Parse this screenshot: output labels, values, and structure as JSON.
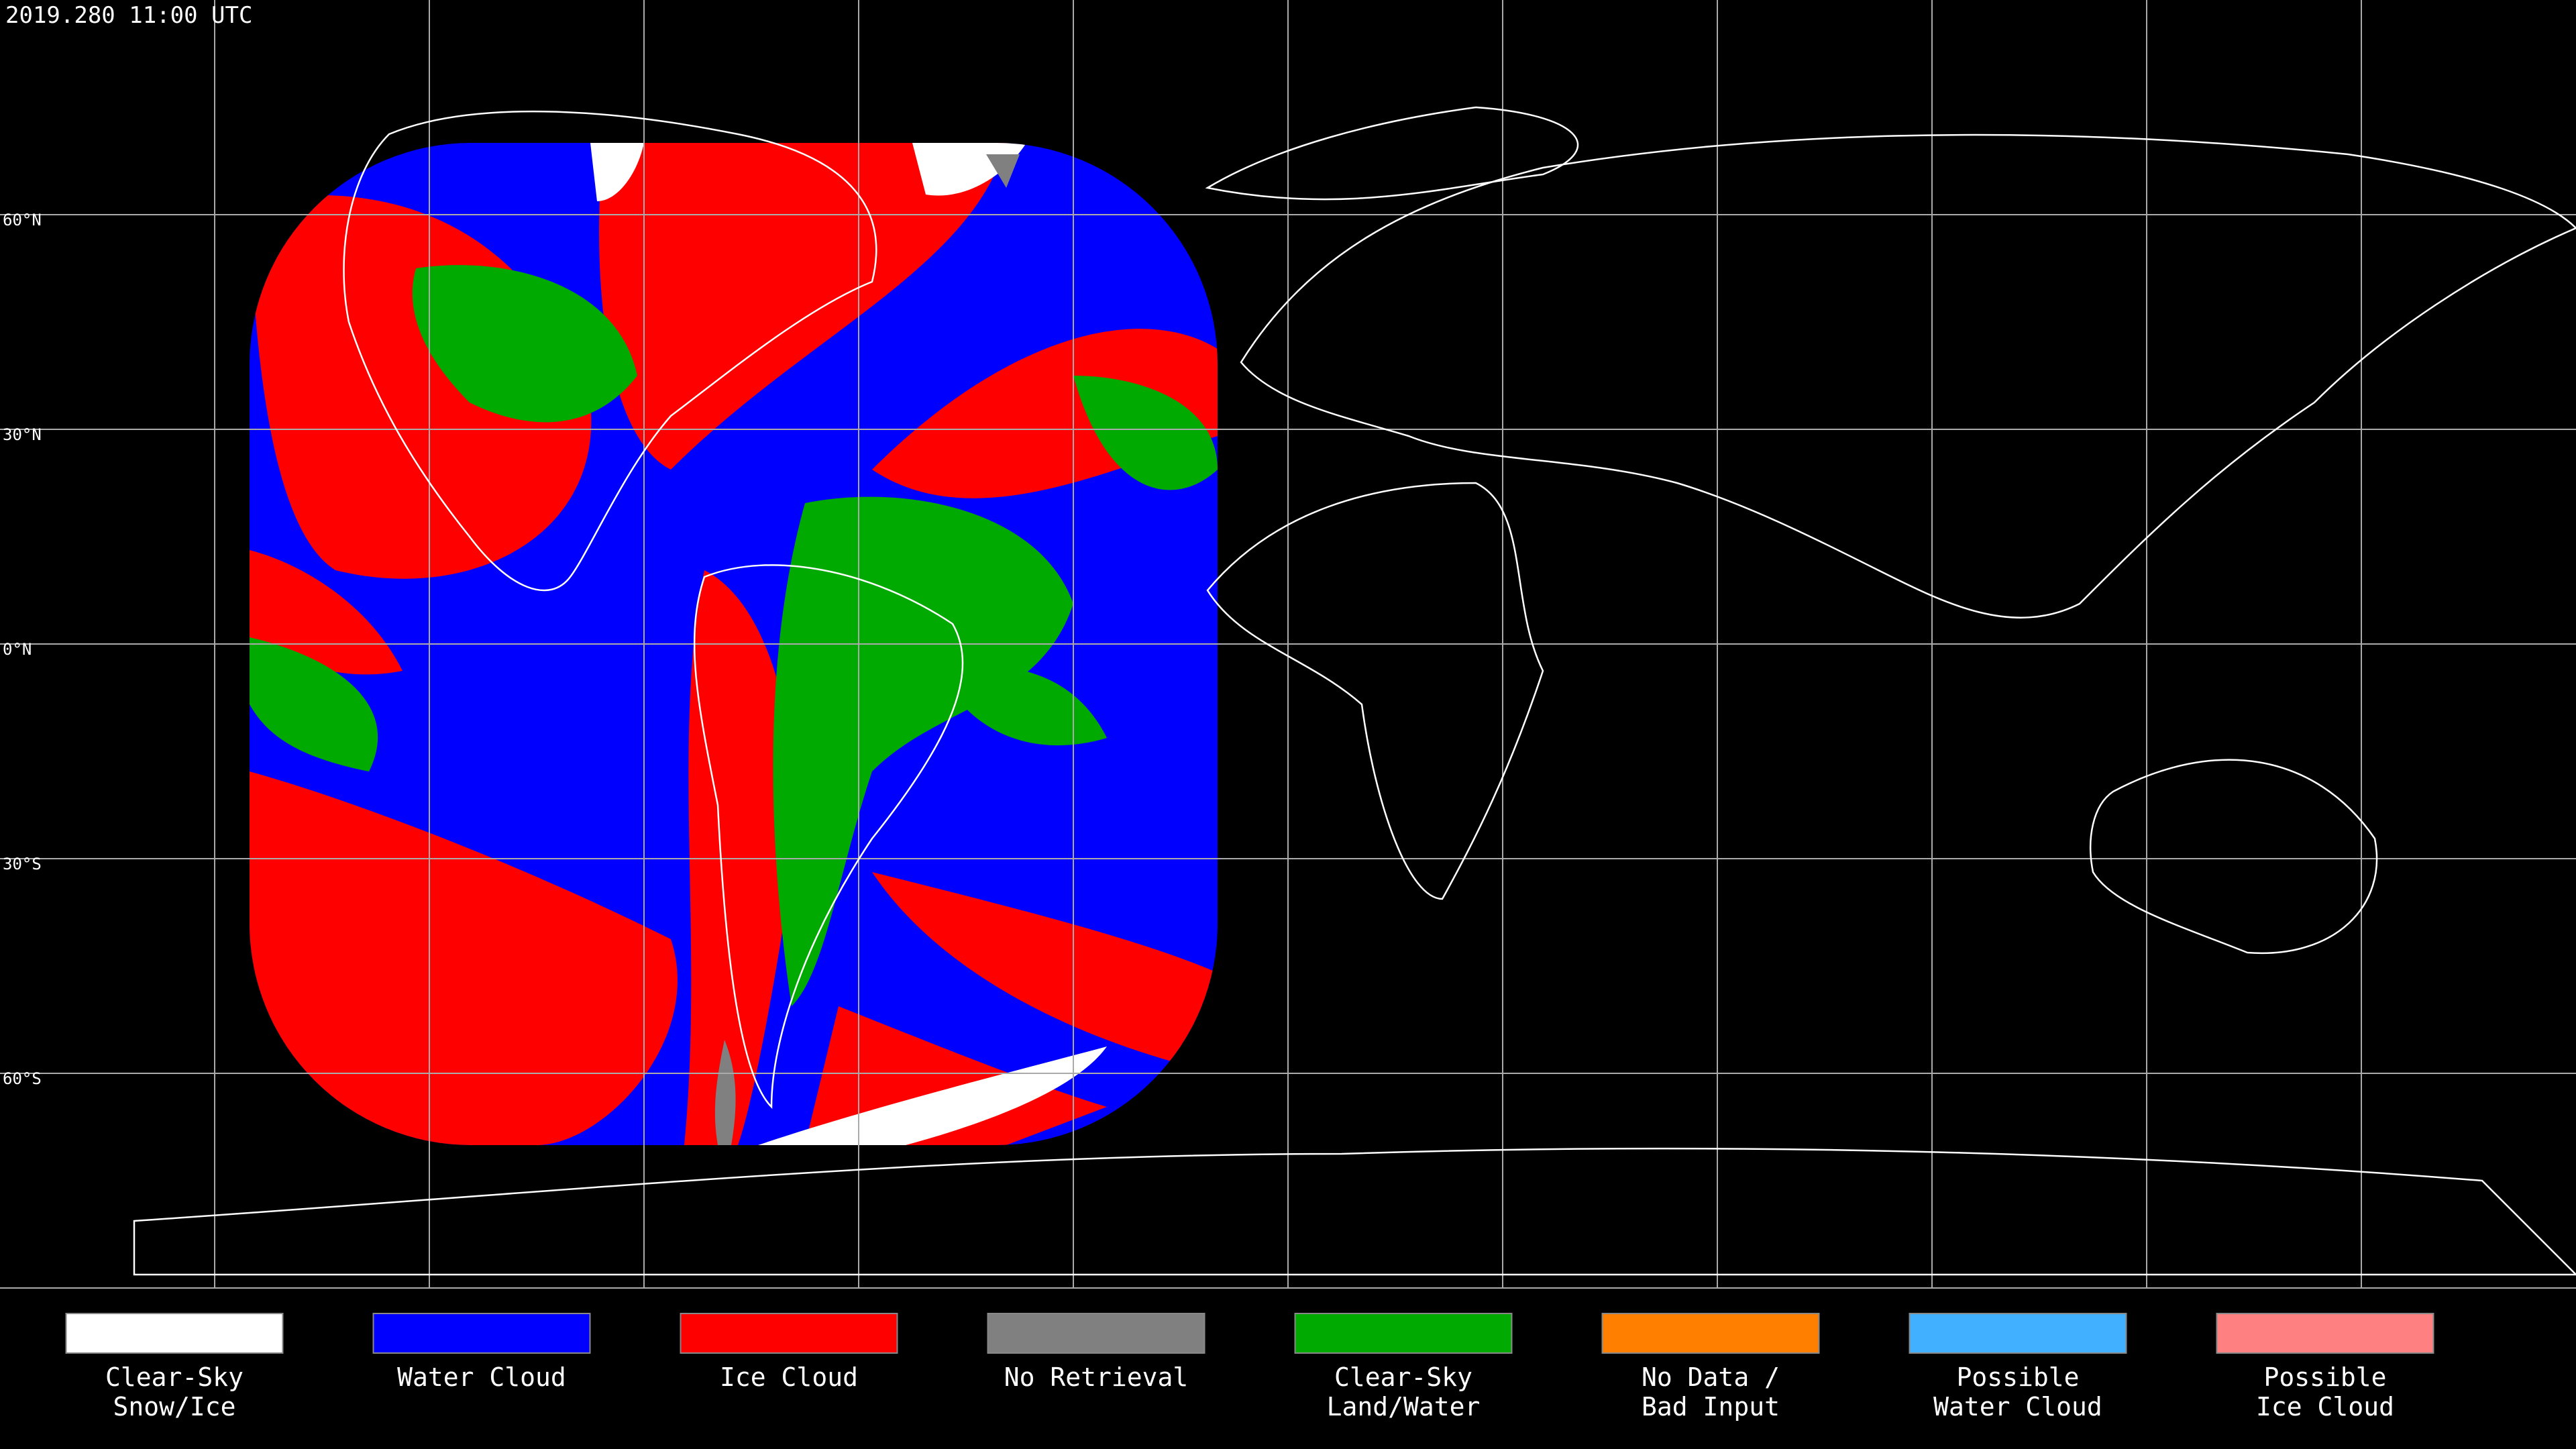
{
  "timestamp": "2019.280 11:00 UTC",
  "lat_labels": [
    "60°N",
    "30°N",
    "0°N",
    "30°S",
    "60°S"
  ],
  "legend": [
    {
      "lines": [
        "Clear-Sky",
        "Snow/Ice"
      ],
      "color": "#ffffff"
    },
    {
      "lines": [
        "Water Cloud"
      ],
      "color": "#0000ff"
    },
    {
      "lines": [
        "Ice Cloud"
      ],
      "color": "#ff0000"
    },
    {
      "lines": [
        "No Retrieval"
      ],
      "color": "#808080"
    },
    {
      "lines": [
        "Clear-Sky",
        "Land/Water"
      ],
      "color": "#00aa00"
    },
    {
      "lines": [
        "No Data /",
        "Bad Input"
      ],
      "color": "#ff8000"
    },
    {
      "lines": [
        "Possible",
        "Water Cloud"
      ],
      "color": "#40b0ff"
    },
    {
      "lines": [
        "Possible",
        "Ice Cloud"
      ],
      "color": "#ff8080"
    }
  ]
}
